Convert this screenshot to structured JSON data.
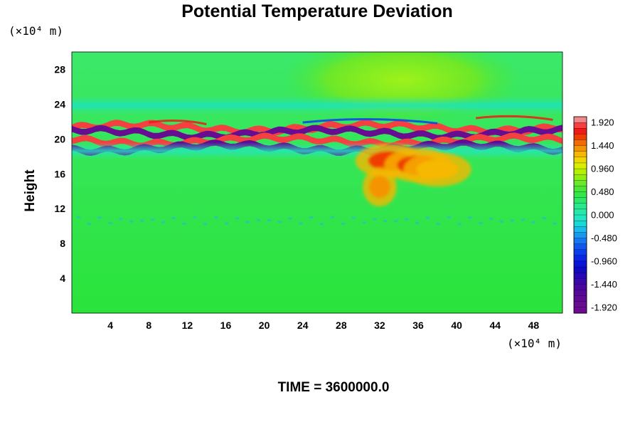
{
  "chart_data": {
    "type": "heatmap",
    "title": "Potential Temperature Deviation",
    "ylabel": "Height",
    "xlabel": "",
    "x_unit": "(×10⁴ m)",
    "y_unit": "(×10⁴ m)",
    "x_ticks": [
      "4",
      "8",
      "12",
      "16",
      "20",
      "24",
      "28",
      "32",
      "36",
      "40",
      "44",
      "48"
    ],
    "y_ticks": [
      "4",
      "8",
      "12",
      "16",
      "20",
      "24",
      "28"
    ],
    "xlim": [
      0,
      51
    ],
    "ylim": [
      0,
      30
    ],
    "time_label": "TIME = 3600000.0",
    "colorbar": {
      "ticks": [
        "1.920",
        "1.440",
        "0.960",
        "0.480",
        "0.000",
        "-0.480",
        "-0.960",
        "-1.440",
        "-1.920"
      ],
      "range": [
        -2.04,
        2.04
      ],
      "levels": 34
    },
    "features": [
      {
        "kind": "background",
        "value": 0.0
      },
      {
        "kind": "upper_warm_dome",
        "x": 36,
        "y": 26.5,
        "value": 0.35
      },
      {
        "kind": "upper_cyan_layer",
        "y": 23.8,
        "value": -0.55
      },
      {
        "kind": "band",
        "y": 21.3,
        "value": 1.9
      },
      {
        "kind": "band",
        "y": 20.7,
        "value": -1.9
      },
      {
        "kind": "band",
        "y": 19.8,
        "value": 1.9
      },
      {
        "kind": "band",
        "y": 19.0,
        "value": -1.7
      },
      {
        "kind": "cyan_layer",
        "y": 18.0,
        "value": -0.6
      },
      {
        "kind": "warm_blob",
        "x": 33,
        "y": 17.5,
        "value": 1.6
      },
      {
        "kind": "warm_blob",
        "x": 36,
        "y": 17.0,
        "value": 1.6
      },
      {
        "kind": "warm_blob",
        "x": 32,
        "y": 14.5,
        "value": 1.4
      },
      {
        "kind": "warm_blob",
        "x": 38,
        "y": 16.5,
        "value": 1.3
      },
      {
        "kind": "noisy_layer",
        "y": 10.5,
        "value": -0.3
      }
    ]
  }
}
